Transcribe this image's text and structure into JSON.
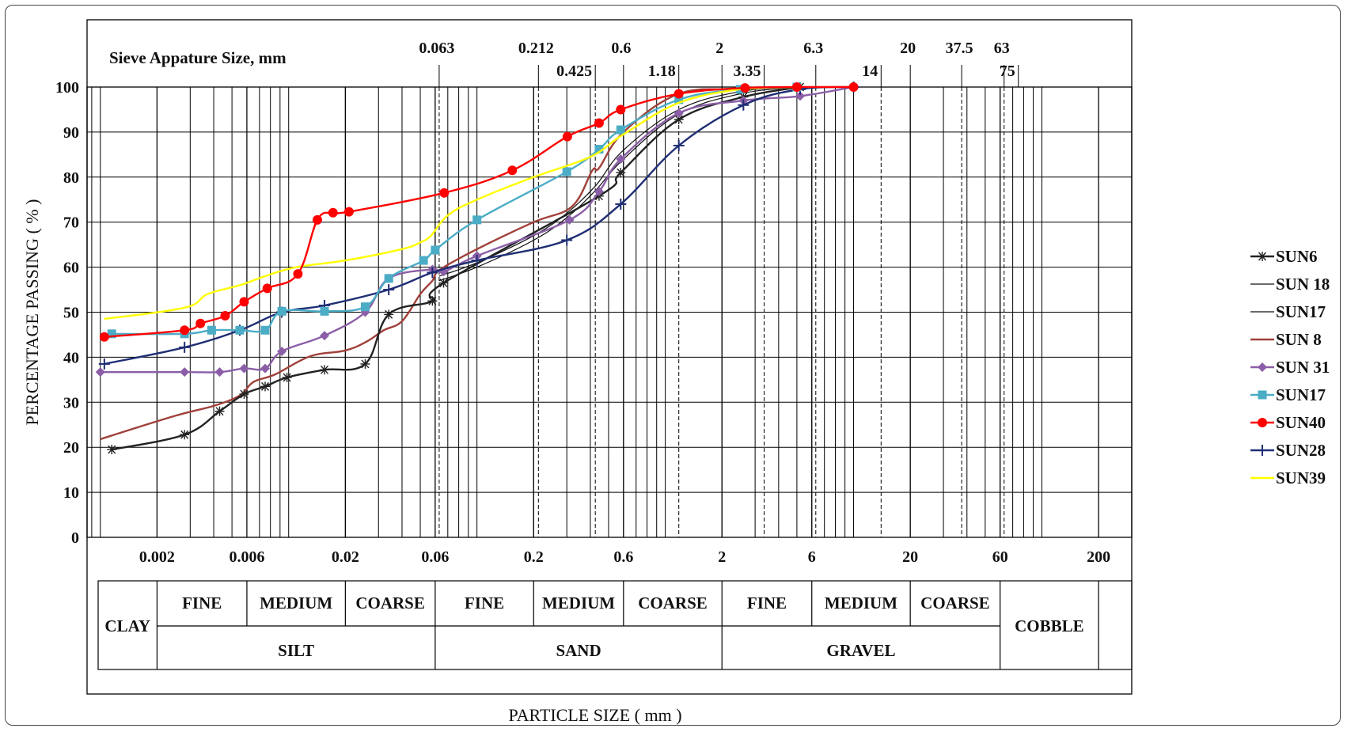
{
  "chart_data": {
    "type": "line",
    "x_scale": "log",
    "xlabel": "PARTICLE  SIZE ( mm )",
    "ylabel": "PERCENTAGE   PASSING ( % )",
    "sieve_title": "Sieve Appature Size, mm",
    "xlim": [
      0.00085,
      300
    ],
    "ylim": [
      0,
      100
    ],
    "y_ticks": [
      0,
      10,
      20,
      30,
      40,
      50,
      60,
      70,
      80,
      90,
      100
    ],
    "x_tick_labels": [
      {
        "v": 0.002,
        "t": "0.002"
      },
      {
        "v": 0.006,
        "t": "0.006"
      },
      {
        "v": 0.02,
        "t": "0.02"
      },
      {
        "v": 0.06,
        "t": "0.06"
      },
      {
        "v": 0.2,
        "t": "0.2"
      },
      {
        "v": 0.6,
        "t": "0.6"
      },
      {
        "v": 2,
        "t": "2"
      },
      {
        "v": 6,
        "t": "6"
      },
      {
        "v": 20,
        "t": "20"
      },
      {
        "v": 60,
        "t": "60"
      },
      {
        "v": 200,
        "t": "200"
      }
    ],
    "sieve_top_row": [
      {
        "v": 0.063,
        "t": "0.063"
      },
      {
        "v": 0.212,
        "t": "0.212"
      },
      {
        "v": 0.6,
        "t": "0.6"
      },
      {
        "v": 2,
        "t": "2"
      },
      {
        "v": 6.3,
        "t": "6.3"
      },
      {
        "v": 20,
        "t": "20"
      },
      {
        "v": 37.5,
        "t": "37.5"
      },
      {
        "v": 63,
        "t": "63"
      }
    ],
    "sieve_bottom_row": [
      {
        "v": 0.425,
        "t": "0.425"
      },
      {
        "v": 1.18,
        "t": "1.18"
      },
      {
        "v": 3.35,
        "t": "3.35"
      },
      {
        "v": 14,
        "t": "14"
      },
      {
        "v": 75,
        "t": "75"
      }
    ],
    "dashed_lines": [
      0.063,
      0.212,
      0.425,
      1.18,
      3.35,
      6.3,
      14,
      37.5,
      63
    ],
    "grid": true,
    "legend_position": "right",
    "classification": {
      "sub_row": [
        {
          "label": "FINE",
          "from": 0.002,
          "to": 0.006
        },
        {
          "label": "MEDIUM",
          "from": 0.006,
          "to": 0.02
        },
        {
          "label": "COARSE",
          "from": 0.02,
          "to": 0.06
        },
        {
          "label": "FINE",
          "from": 0.06,
          "to": 0.2
        },
        {
          "label": "MEDIUM",
          "from": 0.2,
          "to": 0.6
        },
        {
          "label": "COARSE",
          "from": 0.6,
          "to": 2
        },
        {
          "label": "FINE",
          "from": 2,
          "to": 6
        },
        {
          "label": "MEDIUM",
          "from": 6,
          "to": 20
        },
        {
          "label": "COARSE",
          "from": 20,
          "to": 60
        }
      ],
      "main_row": [
        {
          "label": "SILT",
          "from": 0.002,
          "to": 0.06
        },
        {
          "label": "SAND",
          "from": 0.06,
          "to": 2
        },
        {
          "label": "GRAVEL",
          "from": 2,
          "to": 60
        }
      ],
      "full_height": [
        {
          "label": "CLAY",
          "from": 0.00085,
          "to": 0.002
        },
        {
          "label": "COBBLE",
          "from": 60,
          "to": 200
        }
      ]
    },
    "series": [
      {
        "name": "SUN6",
        "color": "#222222",
        "marker": "star",
        "x": [
          0.00115,
          0.0028,
          0.0043,
          0.0058,
          0.0075,
          0.0098,
          0.0155,
          0.0255,
          0.034,
          0.058,
          0.0665,
          0.445,
          0.58,
          1.18,
          2.6,
          5.2
        ],
        "y": [
          19.5,
          22.8,
          28,
          31.8,
          33.5,
          35.5,
          37.2,
          38.5,
          49.5,
          52.5,
          56.5,
          75.8,
          81,
          92.8,
          97.8,
          100
        ]
      },
      {
        "name": "SUN 18",
        "color": "#111111",
        "marker": "none",
        "x": [
          0.063,
          0.1,
          0.2,
          0.3,
          0.425,
          0.6,
          1.18,
          2.5,
          5
        ],
        "y": [
          57,
          60,
          66,
          71,
          77,
          84,
          94,
          98.5,
          100
        ]
      },
      {
        "name": "SUN17",
        "color": "#111111",
        "marker": "none",
        "x": [
          0.063,
          0.1,
          0.2,
          0.3,
          0.425,
          0.6,
          1.18,
          2.5,
          5
        ],
        "y": [
          58,
          61,
          67,
          72,
          78,
          86,
          95,
          99,
          100
        ]
      },
      {
        "name": "SUN 8",
        "color": "#a0403a",
        "marker": "none",
        "x": [
          0.001,
          0.0025,
          0.004,
          0.0055,
          0.0065,
          0.0085,
          0.013,
          0.02,
          0.026,
          0.032,
          0.04,
          0.05,
          0.058,
          0.064,
          0.1,
          0.2,
          0.32,
          0.41,
          0.445,
          0.6,
          1.18,
          2.5,
          5
        ],
        "y": [
          21.8,
          27,
          29.2,
          31.5,
          34.5,
          36.2,
          40.2,
          41.5,
          43.5,
          46,
          48,
          54,
          57,
          59.5,
          64,
          70,
          73.5,
          81.5,
          82,
          90,
          98.5,
          99.5,
          100
        ]
      },
      {
        "name": "SUN 31",
        "color": "#8b5ea7",
        "marker": "diamond",
        "x": [
          0.001,
          0.0028,
          0.0043,
          0.0058,
          0.0075,
          0.0092,
          0.0155,
          0.0255,
          0.034,
          0.058,
          0.0665,
          0.1,
          0.31,
          0.445,
          0.58,
          1.18,
          2.6,
          5.2,
          10
        ],
        "y": [
          36.7,
          36.7,
          36.7,
          37.5,
          37.5,
          41.3,
          44.8,
          50,
          57.5,
          59.5,
          59,
          62.5,
          70.5,
          76.8,
          84,
          94.2,
          97,
          98,
          100
        ]
      },
      {
        "name": "SUN17",
        "color": "#4bacc6",
        "marker": "square",
        "x": [
          0.00115,
          0.0028,
          0.0039,
          0.0055,
          0.0075,
          0.0092,
          0.0155,
          0.0255,
          0.034,
          0.052,
          0.06,
          0.1,
          0.3,
          0.445,
          0.58,
          1.18,
          2.5,
          5
        ],
        "y": [
          45.2,
          45.2,
          46,
          46,
          46,
          50.2,
          50.2,
          51.2,
          57.5,
          61.5,
          63.8,
          70.5,
          81.2,
          86.2,
          90.5,
          97.2,
          99.5,
          100
        ]
      },
      {
        "name": "SUN40",
        "color": "#ff0000",
        "marker": "circle",
        "x": [
          0.00105,
          0.0028,
          0.0034,
          0.0046,
          0.0058,
          0.0077,
          0.0112,
          0.0142,
          0.0172,
          0.0209,
          0.067,
          0.154,
          0.302,
          0.445,
          0.58,
          1.18,
          2.65,
          5,
          10
        ],
        "y": [
          44.5,
          46,
          47.5,
          49.2,
          52.3,
          55.3,
          58.5,
          70.5,
          72.1,
          72.3,
          76.5,
          81.5,
          89,
          92,
          95,
          98.5,
          99.8,
          100,
          100
        ]
      },
      {
        "name": "SUN28",
        "color": "#1f2e74",
        "marker": "plus",
        "x": [
          0.00105,
          0.0028,
          0.0055,
          0.0092,
          0.0155,
          0.034,
          0.058,
          0.1,
          0.3,
          0.58,
          1.18,
          2.6,
          5.2,
          10
        ],
        "y": [
          38.5,
          42.2,
          46,
          50,
          51.5,
          55,
          58.8,
          61.5,
          66,
          74,
          87,
          96,
          99.5,
          100
        ]
      },
      {
        "name": "SUN39",
        "color": "#ffff00",
        "marker": "none",
        "x": [
          0.00105,
          0.0028,
          0.0037,
          0.0055,
          0.0075,
          0.011,
          0.02,
          0.04,
          0.05,
          0.057,
          0.07,
          0.1,
          0.2,
          0.4,
          0.6,
          1.18,
          2.5,
          5
        ],
        "y": [
          48.5,
          51,
          54,
          56,
          58,
          60,
          61.5,
          64,
          65.5,
          67,
          71.5,
          75,
          80,
          84.5,
          89.5,
          96.5,
          99.5,
          100
        ]
      }
    ]
  }
}
